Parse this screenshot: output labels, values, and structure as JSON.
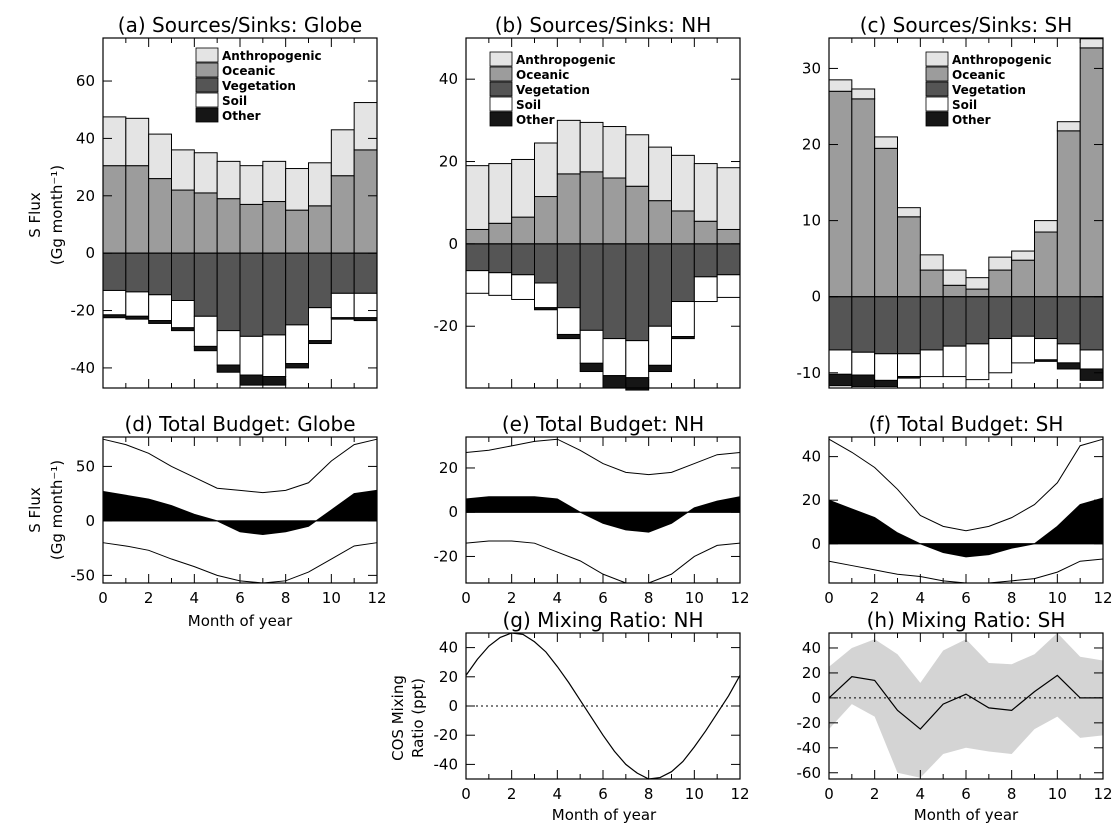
{
  "figure": {
    "s_flux_label": "S Flux",
    "s_flux_unit": "(Gg month⁻¹)",
    "cos_label": "COS Mixing",
    "cos_label2": "Ratio (ppt)",
    "month_label": "Month of year"
  },
  "chart_data": [
    {
      "type": "bar",
      "panel": "a",
      "title": "(a) Sources/Sinks: Globe",
      "ylim": [
        -47,
        75
      ],
      "yticks": [
        -40,
        -20,
        0,
        20,
        40,
        60
      ],
      "xlim": [
        0,
        12
      ],
      "legend": [
        "Anthropogenic",
        "Oceanic",
        "Vegetation",
        "Soil",
        "Other"
      ],
      "series": [
        {
          "name": "Oceanic",
          "values": [
            30.5,
            30.5,
            26,
            22,
            21,
            19,
            17,
            18,
            15,
            16.5,
            27,
            36
          ]
        },
        {
          "name": "Anthropogenic",
          "values": [
            17,
            16.5,
            15.5,
            14,
            14,
            13,
            13.5,
            14,
            14.5,
            15,
            16,
            16.5
          ]
        },
        {
          "name": "Vegetation",
          "values": [
            -13,
            -13.5,
            -14.5,
            -16.5,
            -22,
            -27,
            -29,
            -28.5,
            -25,
            -19,
            -14,
            -14
          ]
        },
        {
          "name": "Soil",
          "values": [
            -8.5,
            -8.5,
            -9,
            -9.5,
            -10.5,
            -12,
            -13.5,
            -14.5,
            -13.5,
            -11.5,
            -8.5,
            -8.5
          ]
        },
        {
          "name": "Other",
          "values": [
            -1,
            -1,
            -1,
            -1,
            -1.5,
            -2.5,
            -3.5,
            -3,
            -1.5,
            -1,
            -0.5,
            -1
          ]
        }
      ]
    },
    {
      "type": "bar",
      "panel": "b",
      "title": "(b) Sources/Sinks: NH",
      "ylim": [
        -35,
        50
      ],
      "yticks": [
        -20,
        0,
        20,
        40
      ],
      "xlim": [
        0,
        12
      ],
      "legend": [
        "Anthropogenic",
        "Oceanic",
        "Vegetation",
        "Soil",
        "Other"
      ],
      "series": [
        {
          "name": "Oceanic",
          "values": [
            3.5,
            5,
            6.5,
            11.5,
            17,
            17.5,
            16,
            14,
            10.5,
            8,
            5.5,
            3.5
          ]
        },
        {
          "name": "Anthropogenic",
          "values": [
            15.5,
            14.5,
            14,
            13,
            13,
            12,
            12.5,
            12.5,
            13,
            13.5,
            14,
            15
          ]
        },
        {
          "name": "Vegetation",
          "values": [
            -6.5,
            -7,
            -7.5,
            -9.5,
            -15.5,
            -21,
            -23,
            -23.5,
            -20,
            -14,
            -8,
            -7.5
          ]
        },
        {
          "name": "Soil",
          "values": [
            -5.5,
            -5.5,
            -6,
            -6,
            -6.5,
            -8,
            -9,
            -9,
            -9.5,
            -8.5,
            -6,
            -5.5
          ]
        },
        {
          "name": "Other",
          "values": [
            0,
            0,
            0,
            -0.5,
            -1,
            -2,
            -3,
            -3,
            -1.5,
            -0.5,
            0,
            0
          ]
        }
      ]
    },
    {
      "type": "bar",
      "panel": "c",
      "title": "(c) Sources/Sinks: SH",
      "ylim": [
        -12,
        34
      ],
      "yticks": [
        -10,
        0,
        10,
        20,
        30
      ],
      "xlim": [
        0,
        12
      ],
      "legend": [
        "Anthropogenic",
        "Oceanic",
        "Vegetation",
        "Soil",
        "Other"
      ],
      "series": [
        {
          "name": "Oceanic",
          "values": [
            27,
            26,
            19.5,
            10.5,
            3.5,
            1.5,
            1,
            3.5,
            4.8,
            8.5,
            21.8,
            32.7
          ]
        },
        {
          "name": "Anthropogenic",
          "values": [
            1.5,
            1.3,
            1.5,
            1.2,
            2,
            2,
            1.5,
            1.7,
            1.2,
            1.5,
            1.2,
            1.2
          ]
        },
        {
          "name": "Vegetation",
          "values": [
            -7,
            -7.3,
            -7.5,
            -7.5,
            -7,
            -6.5,
            -6.2,
            -5.5,
            -5.2,
            -5.5,
            -6.2,
            -7
          ]
        },
        {
          "name": "Soil",
          "values": [
            -3.2,
            -3,
            -3.5,
            -3,
            -3.5,
            -4,
            -4.7,
            -4.5,
            -3.5,
            -2.8,
            -2.5,
            -2.5
          ]
        },
        {
          "name": "Other",
          "values": [
            -1.5,
            -1.5,
            -0.8,
            -0.2,
            0,
            0,
            0,
            0,
            0,
            -0.2,
            -0.8,
            -1.5
          ]
        }
      ]
    },
    {
      "type": "area",
      "panel": "d",
      "title": "(d) Total Budget: Globe",
      "ylim": [
        -57,
        77
      ],
      "yticks": [
        -50,
        0,
        50
      ],
      "xlim": [
        0,
        12
      ],
      "xticks": [
        0,
        2,
        4,
        6,
        8,
        10,
        12
      ],
      "x": [
        0,
        1,
        2,
        3,
        4,
        5,
        6,
        7,
        8,
        9,
        10,
        11,
        12
      ],
      "series": [
        {
          "values": [
            27,
            23.5,
            20,
            14,
            6,
            0,
            -10,
            -12.5,
            -10,
            -5,
            10,
            25,
            28
          ]
        },
        {
          "values": [
            75,
            70,
            62,
            50,
            40,
            30,
            28,
            26,
            28,
            35,
            55,
            70,
            75
          ]
        },
        {
          "values": [
            -20,
            -23,
            -27,
            -35,
            -42,
            -50,
            -55,
            -57,
            -55,
            -47,
            -35,
            -23,
            -20
          ]
        }
      ]
    },
    {
      "type": "area",
      "panel": "e",
      "title": "(e) Total Budget: NH",
      "ylim": [
        -32,
        34
      ],
      "yticks": [
        -20,
        0,
        20
      ],
      "xlim": [
        0,
        12
      ],
      "xticks": [
        0,
        2,
        4,
        6,
        8,
        10,
        12
      ],
      "x": [
        0,
        1,
        2,
        3,
        4,
        5,
        6,
        7,
        8,
        9,
        10,
        11,
        12
      ],
      "series": [
        {
          "values": [
            6,
            7,
            7,
            7,
            6,
            0,
            -5,
            -8,
            -9,
            -5,
            2,
            5,
            7
          ]
        },
        {
          "values": [
            27,
            28,
            30,
            32,
            33,
            28,
            22,
            18,
            17,
            18,
            22,
            26,
            27
          ]
        },
        {
          "values": [
            -14,
            -13,
            -13,
            -14,
            -18,
            -22,
            -28,
            -32,
            -32,
            -28,
            -20,
            -15,
            -14
          ]
        }
      ]
    },
    {
      "type": "area",
      "panel": "f",
      "title": "(f) Total Budget: SH",
      "ylim": [
        -18,
        49
      ],
      "yticks": [
        0,
        20,
        40
      ],
      "xlim": [
        0,
        12
      ],
      "xticks": [
        0,
        2,
        4,
        6,
        8,
        10,
        12
      ],
      "x": [
        0,
        1,
        2,
        3,
        4,
        5,
        6,
        7,
        8,
        9,
        10,
        11,
        12
      ],
      "series": [
        {
          "values": [
            20,
            16,
            12,
            5,
            0,
            -4,
            -6,
            -5,
            -2,
            0,
            8,
            18,
            21
          ]
        },
        {
          "values": [
            48,
            42,
            35,
            25,
            13,
            8,
            6,
            8,
            12,
            18,
            28,
            45,
            48
          ]
        },
        {
          "values": [
            -8,
            -10,
            -12,
            -14,
            -15,
            -17,
            -18,
            -18,
            -17,
            -16,
            -13,
            -8,
            -7
          ]
        }
      ]
    },
    {
      "type": "line",
      "panel": "g",
      "title": "(g) Mixing Ratio: NH",
      "ylim": [
        -50,
        50
      ],
      "yticks": [
        -40,
        -20,
        0,
        20,
        40
      ],
      "xlim": [
        0,
        12
      ],
      "xticks": [
        0,
        2,
        4,
        6,
        8,
        10,
        12
      ],
      "x": [
        0,
        0.5,
        1,
        1.5,
        2,
        2.5,
        3,
        3.5,
        4,
        4.5,
        5,
        5.5,
        6,
        6.5,
        7,
        7.5,
        8,
        8.5,
        9,
        9.5,
        10,
        10.5,
        11,
        11.5,
        12
      ],
      "series": [
        {
          "values": [
            21,
            32,
            41,
            47,
            50,
            49,
            44,
            37,
            27,
            16,
            4,
            -8,
            -20,
            -31,
            -40,
            -46,
            -50,
            -49,
            -45,
            -38,
            -28,
            -17,
            -5,
            7,
            21
          ]
        }
      ]
    },
    {
      "type": "line",
      "panel": "h",
      "title": "(h) Mixing Ratio: SH",
      "ylim": [
        -65,
        52
      ],
      "yticks": [
        -60,
        -40,
        -20,
        0,
        20,
        40
      ],
      "xlim": [
        0,
        12
      ],
      "xticks": [
        0,
        2,
        4,
        6,
        8,
        10,
        12
      ],
      "x": [
        0,
        1,
        2,
        3,
        4,
        5,
        6,
        7,
        8,
        9,
        10,
        11,
        12
      ],
      "series": [
        {
          "values": [
            0,
            17,
            14,
            -10,
            -25,
            -5,
            3,
            -8,
            -10,
            5,
            18,
            0,
            0
          ]
        },
        {
          "values": [
            25,
            40,
            47,
            35,
            12,
            38,
            47,
            28,
            27,
            35,
            52,
            33,
            30
          ]
        },
        {
          "values": [
            -25,
            -5,
            -15,
            -60,
            -64,
            -45,
            -40,
            -43,
            -45,
            -25,
            -15,
            -32,
            -30
          ]
        }
      ]
    }
  ]
}
